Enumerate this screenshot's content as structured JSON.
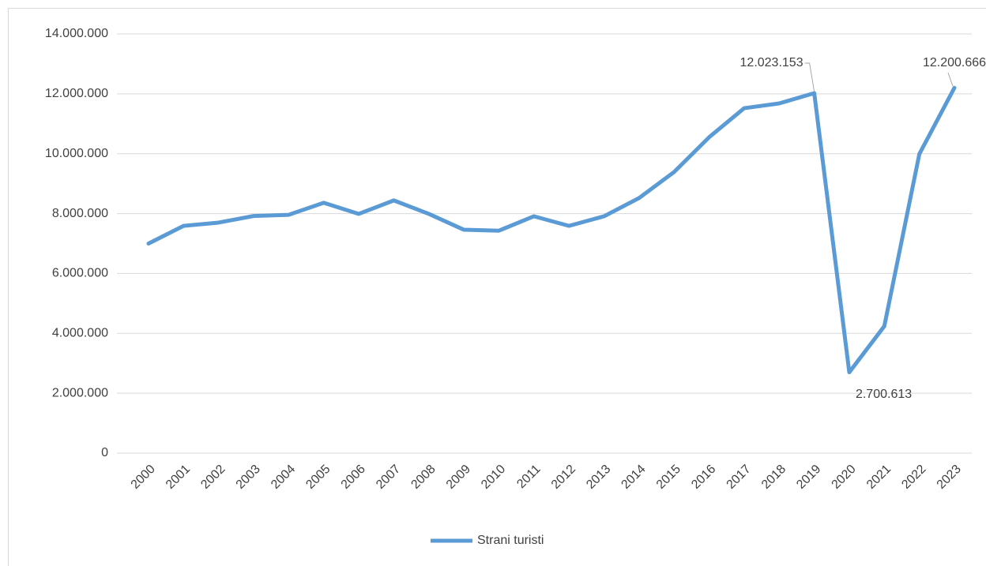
{
  "chart_data": {
    "type": "line",
    "categories": [
      "2000",
      "2001",
      "2002",
      "2003",
      "2004",
      "2005",
      "2006",
      "2007",
      "2008",
      "2009",
      "2010",
      "2011",
      "2012",
      "2013",
      "2014",
      "2015",
      "2016",
      "2017",
      "2018",
      "2019",
      "2020",
      "2021",
      "2022",
      "2023"
    ],
    "series": [
      {
        "name": "Strani turisti",
        "color": "#5b9bd5",
        "values": [
          7000000,
          7590000,
          7700000,
          7920000,
          7960000,
          8360000,
          7990000,
          8440000,
          7990000,
          7460000,
          7430000,
          7910000,
          7590000,
          7910000,
          8520000,
          9390000,
          10550000,
          11520000,
          11680000,
          12023153,
          2700613,
          4240000,
          9990000,
          12200666
        ],
        "value_labels": [
          null,
          null,
          null,
          null,
          null,
          null,
          null,
          null,
          null,
          null,
          null,
          null,
          null,
          null,
          null,
          null,
          null,
          null,
          null,
          "12.023.153",
          "2.700.613",
          null,
          null,
          "12.200.666"
        ]
      }
    ],
    "ylim": [
      0,
      14000000
    ],
    "yticks": [
      0,
      {
        "value": 2000000,
        "label": "2.000.000"
      },
      {
        "value": 4000000,
        "label": "4.000.000"
      },
      {
        "value": 6000000,
        "label": "6.000.000"
      },
      {
        "value": 8000000,
        "label": "8.000.000"
      },
      {
        "value": 10000000,
        "label": "10.000.000"
      },
      {
        "value": 12000000,
        "label": "12.000.000"
      },
      {
        "value": 14000000,
        "label": "14.000.000"
      }
    ],
    "grid": true,
    "legend": "bottom"
  }
}
